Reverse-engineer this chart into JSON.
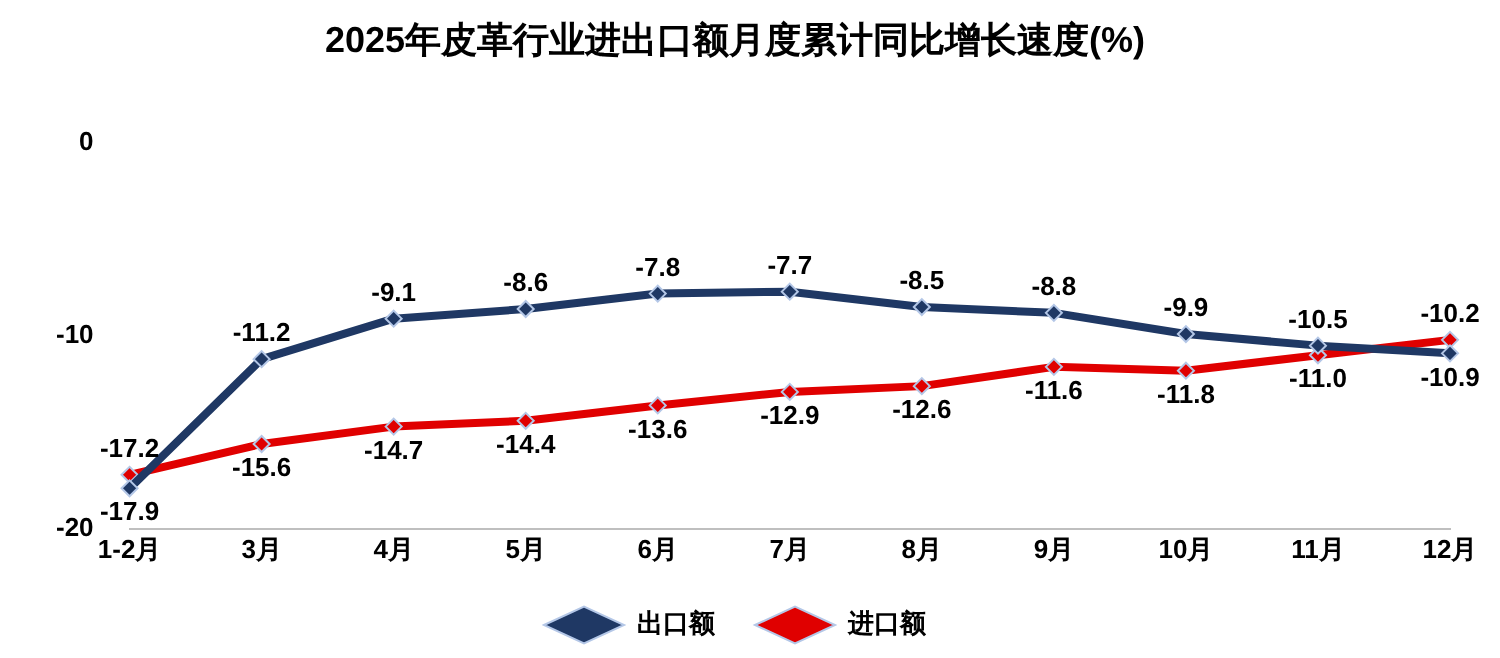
{
  "chart_data": {
    "type": "line",
    "title": "2025年皮革行业进出口额月度累计同比增长速度(%)",
    "categories": [
      "1-2月",
      "3月",
      "4月",
      "5月",
      "6月",
      "7月",
      "8月",
      "9月",
      "10月",
      "11月",
      "12月"
    ],
    "series": [
      {
        "name": "出口额",
        "color": "#1f3864",
        "values": [
          -17.9,
          -11.2,
          -9.1,
          -8.6,
          -7.8,
          -7.7,
          -8.5,
          -8.8,
          -9.9,
          -10.5,
          -10.9
        ]
      },
      {
        "name": "进口额",
        "color": "#e00000",
        "values": [
          -17.2,
          -15.6,
          -14.7,
          -14.4,
          -13.6,
          -12.9,
          -12.6,
          -11.6,
          -11.8,
          -11.0,
          -10.2
        ],
        "value_labels": [
          "-17.2",
          "-15.6",
          "-14.7",
          "-14.4",
          "-13.6",
          "-12.9",
          "-12.6",
          "-11.6",
          "-11.8",
          "-11.0",
          "-10.2"
        ]
      }
    ],
    "ylim": [
      -20,
      0
    ],
    "yticks": [
      0,
      -10,
      -20
    ],
    "grid": false,
    "legend": "bottom",
    "marker": "diamond",
    "line_style": "solid",
    "data_labels": true
  }
}
